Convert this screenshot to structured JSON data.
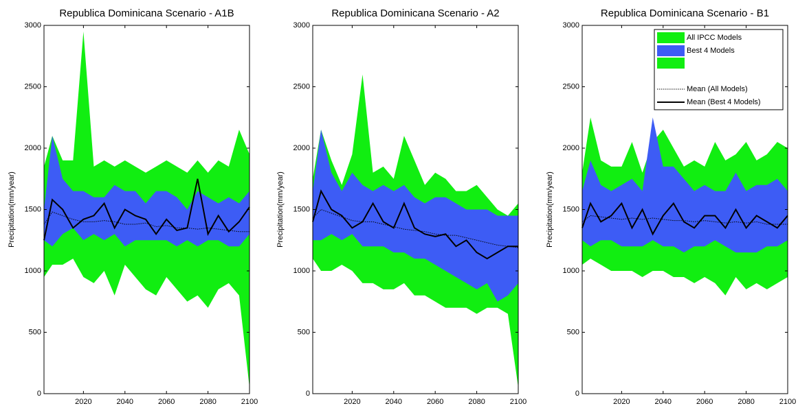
{
  "chart_data": [
    {
      "type": "band",
      "title": "Republica Dominicana Scenario - A1B",
      "ylabel": "Precipitation(mm/year)",
      "x": [
        2001,
        2005,
        2010,
        2015,
        2020,
        2025,
        2030,
        2035,
        2040,
        2045,
        2050,
        2055,
        2060,
        2065,
        2070,
        2075,
        2080,
        2085,
        2090,
        2095,
        2100
      ],
      "xlim": [
        2001,
        2100
      ],
      "xticks": [
        2020,
        2040,
        2060,
        2080,
        2100
      ],
      "ylim": [
        0,
        3000
      ],
      "yticks": [
        0,
        500,
        1000,
        1500,
        2000,
        2500,
        3000
      ],
      "series": [
        {
          "kind": "band",
          "color": "#11ee11",
          "upper": [
            1850,
            2100,
            1900,
            1900,
            2950,
            1850,
            1900,
            1850,
            1900,
            1850,
            1800,
            1850,
            1900,
            1850,
            1800,
            1900,
            1800,
            1900,
            1850,
            2150,
            1950
          ],
          "lower": [
            950,
            1050,
            1050,
            1100,
            950,
            900,
            1000,
            800,
            1050,
            950,
            850,
            800,
            950,
            850,
            750,
            800,
            700,
            850,
            900,
            800,
            50
          ]
        },
        {
          "kind": "band",
          "color": "#3d5cf5",
          "upper": [
            1500,
            2100,
            1750,
            1650,
            1650,
            1600,
            1600,
            1700,
            1650,
            1650,
            1550,
            1650,
            1650,
            1600,
            1500,
            1650,
            1600,
            1550,
            1600,
            1550,
            1650
          ],
          "lower": [
            1250,
            1200,
            1300,
            1350,
            1250,
            1300,
            1250,
            1300,
            1200,
            1250,
            1250,
            1250,
            1250,
            1200,
            1250,
            1200,
            1250,
            1250,
            1200,
            1200,
            1300
          ]
        },
        {
          "kind": "line",
          "style": "dotted",
          "color": "#000000",
          "values": [
            1380,
            1480,
            1450,
            1420,
            1400,
            1400,
            1410,
            1400,
            1380,
            1380,
            1390,
            1360,
            1370,
            1350,
            1350,
            1340,
            1350,
            1340,
            1330,
            1320,
            1320
          ]
        },
        {
          "kind": "line",
          "style": "solid",
          "color": "#000000",
          "values": [
            1250,
            1580,
            1500,
            1350,
            1420,
            1450,
            1550,
            1350,
            1500,
            1450,
            1420,
            1300,
            1420,
            1330,
            1350,
            1750,
            1300,
            1450,
            1320,
            1400,
            1520
          ]
        }
      ]
    },
    {
      "type": "band",
      "title": "Republica Dominicana Scenario - A2",
      "ylabel": "Precipitation(mm/year)",
      "x": [
        2001,
        2005,
        2010,
        2015,
        2020,
        2025,
        2030,
        2035,
        2040,
        2045,
        2050,
        2055,
        2060,
        2065,
        2070,
        2075,
        2080,
        2085,
        2090,
        2095,
        2100
      ],
      "xlim": [
        2001,
        2100
      ],
      "xticks": [
        2020,
        2040,
        2060,
        2080,
        2100
      ],
      "ylim": [
        0,
        3000
      ],
      "yticks": [
        0,
        500,
        1000,
        1500,
        2000,
        2500,
        3000
      ],
      "series": [
        {
          "kind": "band",
          "color": "#11ee11",
          "upper": [
            1750,
            2150,
            1900,
            1700,
            1950,
            2600,
            1800,
            1850,
            1750,
            2100,
            1900,
            1700,
            1800,
            1750,
            1650,
            1650,
            1700,
            1600,
            1500,
            1450,
            1550
          ],
          "lower": [
            1100,
            1000,
            1000,
            1050,
            1000,
            900,
            900,
            850,
            850,
            900,
            800,
            800,
            750,
            700,
            700,
            700,
            650,
            700,
            700,
            650,
            50
          ]
        },
        {
          "kind": "band",
          "color": "#3d5cf5",
          "upper": [
            1650,
            2150,
            1800,
            1650,
            1800,
            1700,
            1650,
            1700,
            1650,
            1700,
            1600,
            1550,
            1600,
            1600,
            1550,
            1500,
            1500,
            1500,
            1450,
            1450,
            1450
          ],
          "lower": [
            1250,
            1250,
            1300,
            1250,
            1300,
            1200,
            1200,
            1200,
            1150,
            1150,
            1100,
            1100,
            1050,
            1000,
            950,
            900,
            850,
            900,
            750,
            800,
            900
          ]
        },
        {
          "kind": "line",
          "style": "dotted",
          "color": "#000000",
          "values": [
            1430,
            1500,
            1470,
            1440,
            1410,
            1400,
            1400,
            1380,
            1360,
            1340,
            1330,
            1320,
            1300,
            1290,
            1290,
            1270,
            1250,
            1230,
            1210,
            1200,
            1190
          ]
        },
        {
          "kind": "line",
          "style": "solid",
          "color": "#000000",
          "values": [
            1400,
            1650,
            1500,
            1450,
            1350,
            1400,
            1550,
            1400,
            1350,
            1550,
            1350,
            1300,
            1280,
            1300,
            1200,
            1250,
            1150,
            1100,
            1150,
            1200,
            1200
          ]
        }
      ]
    },
    {
      "type": "band",
      "title": "Republica Dominicana Scenario - B1",
      "ylabel": "Precipitation(mm/year)",
      "x": [
        2001,
        2005,
        2010,
        2015,
        2020,
        2025,
        2030,
        2035,
        2040,
        2045,
        2050,
        2055,
        2060,
        2065,
        2070,
        2075,
        2080,
        2085,
        2090,
        2095,
        2100
      ],
      "xlim": [
        2001,
        2100
      ],
      "xticks": [
        2020,
        2040,
        2060,
        2080,
        2100
      ],
      "ylim": [
        0,
        3000
      ],
      "yticks": [
        0,
        500,
        1000,
        1500,
        2000,
        2500,
        3000
      ],
      "legend": "upper right",
      "series": [
        {
          "name": "All IPCC Models",
          "kind": "band",
          "color": "#11ee11",
          "upper": [
            1800,
            2250,
            1900,
            1850,
            1850,
            2050,
            1800,
            2050,
            2150,
            2000,
            1850,
            1900,
            1850,
            2050,
            1900,
            1950,
            2050,
            1900,
            1950,
            2050,
            2000
          ],
          "lower": [
            1050,
            1100,
            1050,
            1000,
            1000,
            1000,
            950,
            1000,
            1000,
            950,
            950,
            900,
            950,
            900,
            800,
            950,
            850,
            900,
            850,
            900,
            950
          ]
        },
        {
          "name": "Best 4 Models",
          "kind": "band",
          "color": "#3d5cf5",
          "upper": [
            1650,
            1900,
            1700,
            1650,
            1700,
            1750,
            1650,
            2250,
            1850,
            1850,
            1750,
            1650,
            1700,
            1650,
            1650,
            1800,
            1650,
            1700,
            1700,
            1750,
            1650
          ],
          "lower": [
            1250,
            1200,
            1250,
            1250,
            1200,
            1200,
            1200,
            1250,
            1200,
            1200,
            1150,
            1200,
            1200,
            1250,
            1200,
            1150,
            1150,
            1150,
            1200,
            1200,
            1250
          ]
        },
        {
          "name": "Mean (All Models)",
          "kind": "line",
          "style": "dotted",
          "color": "#000000",
          "values": [
            1400,
            1450,
            1440,
            1430,
            1420,
            1430,
            1420,
            1430,
            1420,
            1410,
            1410,
            1400,
            1410,
            1400,
            1390,
            1400,
            1390,
            1400,
            1380,
            1380,
            1380
          ]
        },
        {
          "name": "Mean (Best 4 Models)",
          "kind": "line",
          "style": "solid",
          "color": "#000000",
          "values": [
            1350,
            1550,
            1400,
            1450,
            1550,
            1350,
            1500,
            1300,
            1450,
            1550,
            1400,
            1350,
            1450,
            1450,
            1350,
            1500,
            1350,
            1450,
            1400,
            1350,
            1450
          ]
        }
      ]
    }
  ]
}
